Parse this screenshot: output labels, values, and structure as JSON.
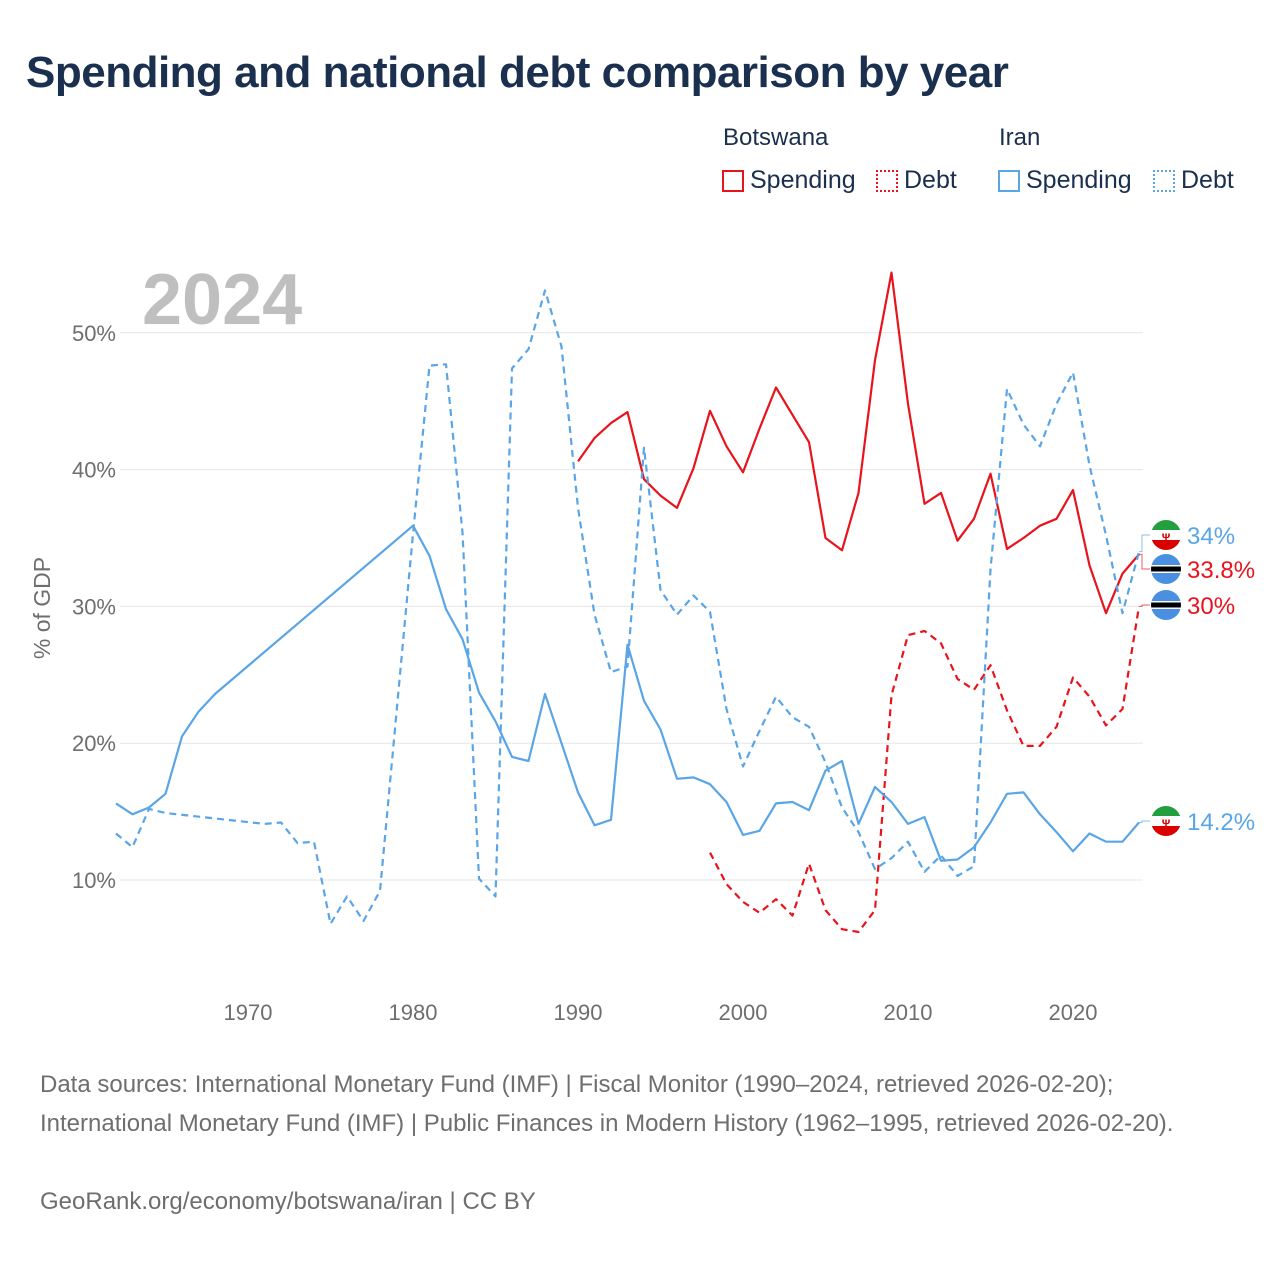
{
  "title": "Spending and national debt comparison by year",
  "legend": {
    "groups": [
      {
        "name": "Botswana",
        "items": [
          "Spending",
          "Debt"
        ]
      },
      {
        "name": "Iran",
        "items": [
          "Spending",
          "Debt"
        ]
      }
    ]
  },
  "footer": {
    "sources": "Data sources: International Monetary Fund (IMF) | Fiscal Monitor (1990–2024, retrieved 2026-02-20); International Monetary Fund (IMF) | Public Finances in Modern History (1962–1995, retrieved 2026-02-20).",
    "credit": "GeoRank.org/economy/botswana/iran | CC BY"
  },
  "colors": {
    "botswana": "#e8141c",
    "iran": "#5aa5e6",
    "grid": "#e6e6e6",
    "axis_text": "#6e6e6e",
    "year_watermark": "#bfbfbf"
  },
  "chart_data": {
    "type": "line",
    "year_label": "2024",
    "ylabel": "% of GDP",
    "xlim": [
      1961.5,
      2024.5
    ],
    "ylim": [
      4,
      55
    ],
    "x_ticks": [
      1970,
      1980,
      1990,
      2000,
      2010,
      2020
    ],
    "y_ticks": [
      10,
      20,
      30,
      40,
      50
    ],
    "y_tick_labels": [
      "10%",
      "20%",
      "30%",
      "40%",
      "50%"
    ],
    "series": [
      {
        "name": "Botswana Spending",
        "country": "Botswana",
        "metric": "Spending",
        "style": "solid",
        "end_label": "33.8%",
        "points": [
          [
            1990,
            40.6
          ],
          [
            1991,
            42.3
          ],
          [
            1992,
            43.4
          ],
          [
            1993,
            44.2
          ],
          [
            1994,
            39.3
          ],
          [
            1995,
            38.1
          ],
          [
            1996,
            37.2
          ],
          [
            1997,
            40.1
          ],
          [
            1998,
            44.3
          ],
          [
            1999,
            41.7
          ],
          [
            2000,
            39.8
          ],
          [
            2001,
            43.0
          ],
          [
            2002,
            46.0
          ],
          [
            2003,
            44.0
          ],
          [
            2004,
            42.0
          ],
          [
            2005,
            35.0
          ],
          [
            2006,
            34.1
          ],
          [
            2007,
            38.3
          ],
          [
            2008,
            48.0
          ],
          [
            2009,
            54.4
          ],
          [
            2010,
            44.8
          ],
          [
            2011,
            37.5
          ],
          [
            2012,
            38.3
          ],
          [
            2013,
            34.8
          ],
          [
            2014,
            36.4
          ],
          [
            2015,
            39.7
          ],
          [
            2016,
            34.2
          ],
          [
            2017,
            35.0
          ],
          [
            2018,
            35.9
          ],
          [
            2019,
            36.4
          ],
          [
            2020,
            38.5
          ],
          [
            2021,
            33.0
          ],
          [
            2022,
            29.5
          ],
          [
            2023,
            32.4
          ],
          [
            2024,
            33.8
          ]
        ]
      },
      {
        "name": "Botswana Debt",
        "country": "Botswana",
        "metric": "Debt",
        "style": "dashed",
        "end_label": "30%",
        "points": [
          [
            1998,
            12.0
          ],
          [
            1999,
            9.7
          ],
          [
            2000,
            8.4
          ],
          [
            2001,
            7.6
          ],
          [
            2002,
            8.6
          ],
          [
            2003,
            7.4
          ],
          [
            2004,
            11.2
          ],
          [
            2005,
            7.8
          ],
          [
            2006,
            6.4
          ],
          [
            2007,
            6.2
          ],
          [
            2008,
            7.8
          ],
          [
            2009,
            23.5
          ],
          [
            2010,
            27.9
          ],
          [
            2011,
            28.2
          ],
          [
            2012,
            27.3
          ],
          [
            2013,
            24.7
          ],
          [
            2014,
            23.9
          ],
          [
            2015,
            25.7
          ],
          [
            2016,
            22.4
          ],
          [
            2017,
            19.8
          ],
          [
            2018,
            19.8
          ],
          [
            2019,
            21.2
          ],
          [
            2020,
            24.8
          ],
          [
            2021,
            23.4
          ],
          [
            2022,
            21.3
          ],
          [
            2023,
            22.5
          ],
          [
            2024,
            30.0
          ]
        ]
      },
      {
        "name": "Iran Spending",
        "country": "Iran",
        "metric": "Spending",
        "style": "solid",
        "end_label": "14.2%",
        "points": [
          [
            1962,
            15.6
          ],
          [
            1963,
            14.8
          ],
          [
            1964,
            15.3
          ],
          [
            1965,
            16.3
          ],
          [
            1966,
            20.5
          ],
          [
            1967,
            22.3
          ],
          [
            1968,
            23.6
          ],
          [
            1980,
            35.9
          ],
          [
            1981,
            33.7
          ],
          [
            1982,
            29.8
          ],
          [
            1983,
            27.6
          ],
          [
            1984,
            23.7
          ],
          [
            1985,
            21.6
          ],
          [
            1986,
            19.0
          ],
          [
            1987,
            18.7
          ],
          [
            1988,
            23.6
          ],
          [
            1989,
            20.0
          ],
          [
            1990,
            16.4
          ],
          [
            1991,
            14.0
          ],
          [
            1992,
            14.4
          ],
          [
            1993,
            27.2
          ],
          [
            1994,
            23.1
          ],
          [
            1995,
            21.0
          ],
          [
            1996,
            17.4
          ],
          [
            1997,
            17.5
          ],
          [
            1998,
            17.0
          ],
          [
            1999,
            15.7
          ],
          [
            2000,
            13.3
          ],
          [
            2001,
            13.6
          ],
          [
            2002,
            15.6
          ],
          [
            2003,
            15.7
          ],
          [
            2004,
            15.1
          ],
          [
            2005,
            18.0
          ],
          [
            2006,
            18.7
          ],
          [
            2007,
            14.1
          ],
          [
            2008,
            16.8
          ],
          [
            2009,
            15.7
          ],
          [
            2010,
            14.1
          ],
          [
            2011,
            14.6
          ],
          [
            2012,
            11.4
          ],
          [
            2013,
            11.5
          ],
          [
            2014,
            12.4
          ],
          [
            2015,
            14.2
          ],
          [
            2016,
            16.3
          ],
          [
            2017,
            16.4
          ],
          [
            2018,
            14.8
          ],
          [
            2019,
            13.5
          ],
          [
            2020,
            12.1
          ],
          [
            2021,
            13.4
          ],
          [
            2022,
            12.8
          ],
          [
            2023,
            12.8
          ],
          [
            2024,
            14.2
          ]
        ]
      },
      {
        "name": "Iran Debt",
        "country": "Iran",
        "metric": "Debt",
        "style": "dashed",
        "end_label": "34%",
        "points": [
          [
            1962,
            13.4
          ],
          [
            1963,
            12.4
          ],
          [
            1964,
            15.2
          ],
          [
            1965,
            14.9
          ],
          [
            1971,
            14.1
          ],
          [
            1972,
            14.2
          ],
          [
            1973,
            12.7
          ],
          [
            1974,
            12.8
          ],
          [
            1975,
            6.8
          ],
          [
            1976,
            8.8
          ],
          [
            1977,
            7.0
          ],
          [
            1978,
            9.2
          ],
          [
            1980,
            35.3
          ],
          [
            1981,
            47.6
          ],
          [
            1982,
            47.7
          ],
          [
            1983,
            35.4
          ],
          [
            1984,
            10.1
          ],
          [
            1985,
            8.8
          ],
          [
            1986,
            47.4
          ],
          [
            1987,
            48.8
          ],
          [
            1988,
            53.1
          ],
          [
            1989,
            49.0
          ],
          [
            1990,
            37.2
          ],
          [
            1991,
            29.4
          ],
          [
            1992,
            25.2
          ],
          [
            1993,
            25.6
          ],
          [
            1994,
            41.6
          ],
          [
            1995,
            31.2
          ],
          [
            1996,
            29.4
          ],
          [
            1997,
            30.8
          ],
          [
            1998,
            29.6
          ],
          [
            1999,
            22.5
          ],
          [
            2000,
            18.3
          ],
          [
            2001,
            20.9
          ],
          [
            2002,
            23.4
          ],
          [
            2003,
            21.9
          ],
          [
            2004,
            21.2
          ],
          [
            2005,
            18.6
          ],
          [
            2006,
            15.3
          ],
          [
            2007,
            13.5
          ],
          [
            2008,
            10.8
          ],
          [
            2009,
            11.6
          ],
          [
            2010,
            12.8
          ],
          [
            2011,
            10.6
          ],
          [
            2012,
            11.8
          ],
          [
            2013,
            10.3
          ],
          [
            2014,
            11.0
          ],
          [
            2015,
            32.7
          ],
          [
            2016,
            45.9
          ],
          [
            2017,
            43.3
          ],
          [
            2018,
            41.7
          ],
          [
            2019,
            44.8
          ],
          [
            2020,
            47.1
          ],
          [
            2021,
            40.3
          ],
          [
            2022,
            35.2
          ],
          [
            2023,
            29.5
          ],
          [
            2024,
            34.0
          ]
        ]
      }
    ]
  }
}
